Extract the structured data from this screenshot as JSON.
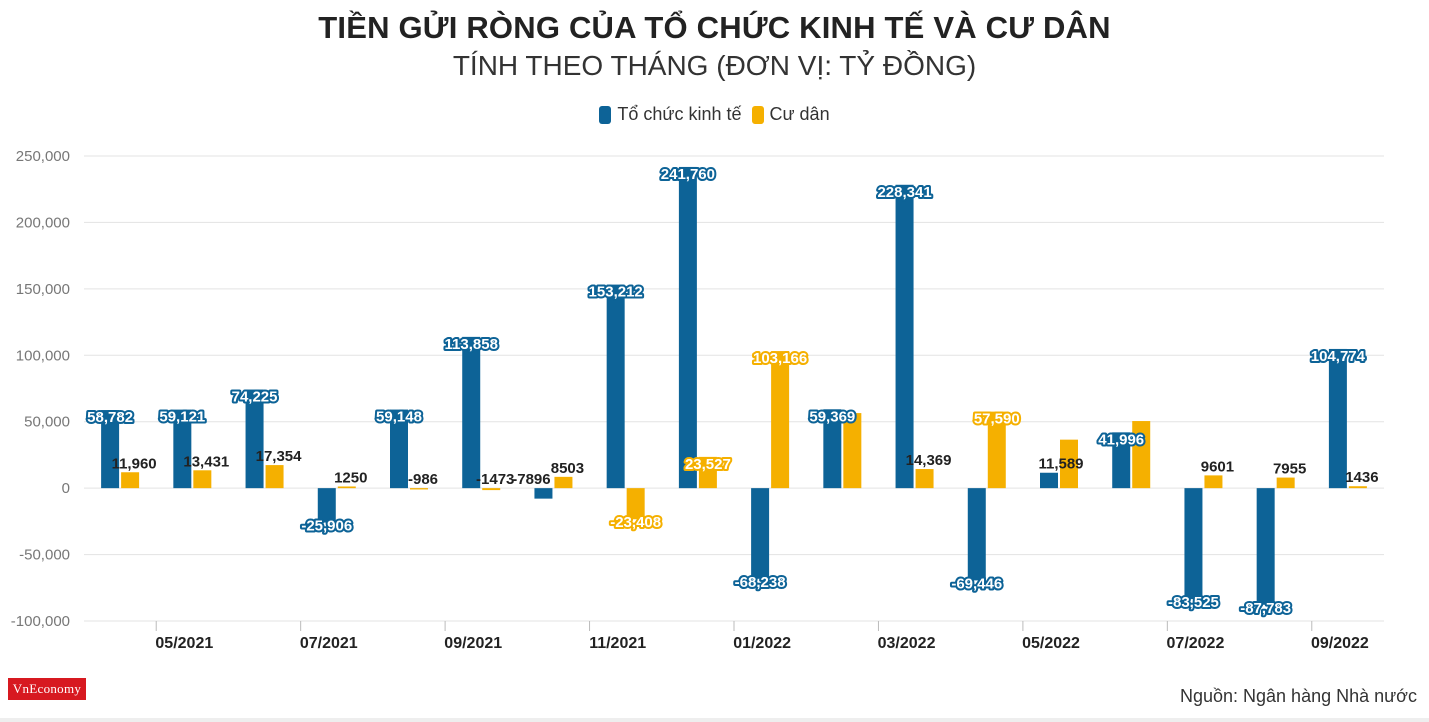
{
  "title": "TIỀN GỬI RÒNG CỦA TỔ CHỨC KINH TẾ VÀ CƯ DÂN",
  "subtitle": "TÍNH THEO THÁNG (ĐƠN VỊ: TỶ ĐỒNG)",
  "source": "Nguồn: Ngân hàng Nhà nước",
  "logo": "VnEconomy",
  "colors": {
    "org": "#0d6397",
    "res": "#f5b000",
    "grid": "#e3e3e3",
    "text": "#222222"
  },
  "chart_data": {
    "type": "bar",
    "ylim": [
      -100000,
      250000
    ],
    "yticks": [
      250000,
      200000,
      150000,
      100000,
      50000,
      0,
      -50000,
      -100000
    ],
    "ytick_labels": [
      "250,000",
      "200,000",
      "150,000",
      "100,000",
      "50,000",
      "0",
      "-50,000",
      "-100,000"
    ],
    "grid": true,
    "legend_position": "top-center",
    "xtick_labels": [
      "",
      "05/2021",
      "",
      "07/2021",
      "",
      "09/2021",
      "",
      "11/2021",
      "",
      "01/2022",
      "",
      "03/2022",
      "",
      "05/2022",
      "",
      "07/2022",
      "",
      "09/2022"
    ],
    "series": [
      {
        "name": "Tổ chức kinh tế",
        "values": [
          58782,
          59121,
          74225,
          -25906,
          59148,
          113858,
          -7896,
          153212,
          241760,
          -68238,
          59369,
          228341,
          -69446,
          11589,
          41996,
          -83525,
          -87783,
          104774
        ],
        "labels": [
          "58,782",
          "59,121",
          "74,225",
          "-25,906",
          "59,148",
          "113,858",
          "-7896",
          "153,212",
          "241,760",
          "-68,238",
          "59,369",
          "228,341",
          "-69,446",
          "11,589",
          "41,996",
          "-83,525",
          "-87,783",
          "104,774"
        ],
        "label_boxed": [
          true,
          true,
          true,
          true,
          true,
          true,
          false,
          true,
          true,
          true,
          true,
          true,
          true,
          false,
          true,
          true,
          true,
          true
        ]
      },
      {
        "name": "Cư dân",
        "values": [
          11960,
          13431,
          17354,
          1250,
          -986,
          -1473,
          8503,
          -23408,
          23527,
          103166,
          56500,
          14369,
          57590,
          36500,
          50500,
          9601,
          7955,
          1436
        ],
        "labels": [
          "11,960",
          "13,431",
          "17,354",
          "1250",
          "-986",
          "-1473",
          "8503",
          "-23,408",
          "23,527",
          "103,166",
          "",
          "14,369",
          "57,590",
          "",
          "",
          "9601",
          "7955",
          "1436"
        ],
        "label_boxed": [
          false,
          false,
          false,
          false,
          false,
          false,
          false,
          true,
          true,
          true,
          false,
          false,
          true,
          false,
          false,
          false,
          false,
          false
        ]
      }
    ]
  }
}
